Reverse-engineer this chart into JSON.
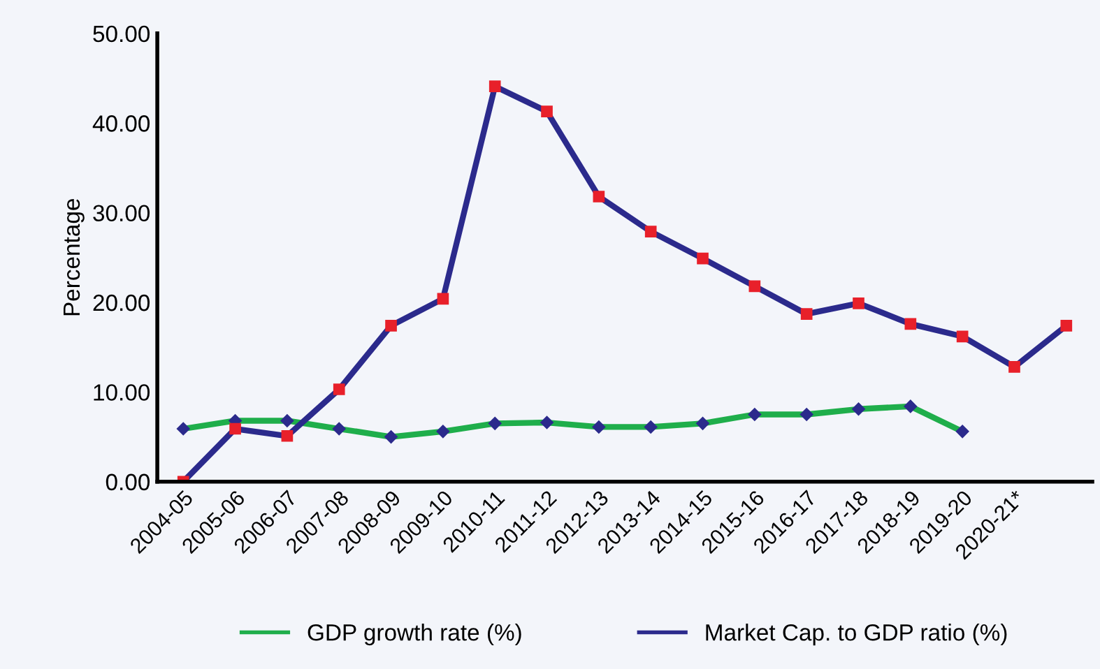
{
  "chart_data": {
    "type": "line",
    "ylabel": "Percentage",
    "categories": [
      "2004-05",
      "2005-06",
      "2006-07",
      "2007-08",
      "2008-09",
      "2009-10",
      "2010-11",
      "2011-12",
      "2012-13",
      "2013-14",
      "2014-15",
      "2015-16",
      "2016-17",
      "2017-18",
      "2018-19",
      "2019-20",
      "2020-21*",
      null
    ],
    "series": [
      {
        "name": "GDP growth rate (%)",
        "color": "#1fae4b",
        "marker": "diamond",
        "values": [
          5.9,
          6.8,
          6.8,
          5.9,
          5.0,
          5.6,
          6.5,
          6.6,
          6.1,
          6.1,
          6.5,
          7.5,
          7.5,
          8.1,
          8.4,
          5.6,
          null,
          null
        ]
      },
      {
        "name": "Market Cap. to GDP ratio (%)",
        "color": "#2b2a8c",
        "marker": "square",
        "values": [
          0.0,
          5.9,
          5.1,
          10.3,
          17.4,
          20.4,
          44.1,
          41.3,
          31.8,
          27.9,
          24.9,
          21.8,
          18.7,
          19.9,
          17.6,
          16.2,
          12.8,
          17.4
        ]
      }
    ],
    "ylim": [
      0,
      50
    ],
    "yticks": [
      {
        "value": 0,
        "label": "0.00"
      },
      {
        "value": 10,
        "label": "10.00"
      },
      {
        "value": 20,
        "label": "20.00"
      },
      {
        "value": 30,
        "label": "30.00"
      },
      {
        "value": 40,
        "label": "40.00"
      },
      {
        "value": 50,
        "label": "50.00"
      }
    ],
    "grid": false,
    "legend": "bottom",
    "line_style": "solid"
  }
}
